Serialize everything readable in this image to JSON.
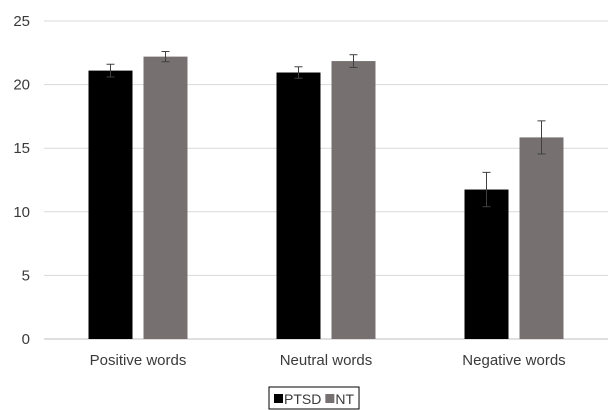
{
  "chart_data": {
    "type": "bar",
    "categories": [
      "Positive words",
      "Neutral words",
      "Negative words"
    ],
    "series": [
      {
        "name": "PTSD",
        "values": [
          21.1,
          20.95,
          11.75
        ],
        "errors": [
          0.5,
          0.45,
          1.35
        ],
        "color": "#000000"
      },
      {
        "name": "NT",
        "values": [
          22.2,
          21.85,
          15.85
        ],
        "errors": [
          0.4,
          0.5,
          1.3
        ],
        "color": "#767170"
      }
    ],
    "ylim": [
      0,
      25
    ],
    "yticks": [
      "0",
      "5",
      "10",
      "15",
      "20",
      "25"
    ],
    "grid": true,
    "legend_position": "bottom",
    "error_bars": true
  }
}
